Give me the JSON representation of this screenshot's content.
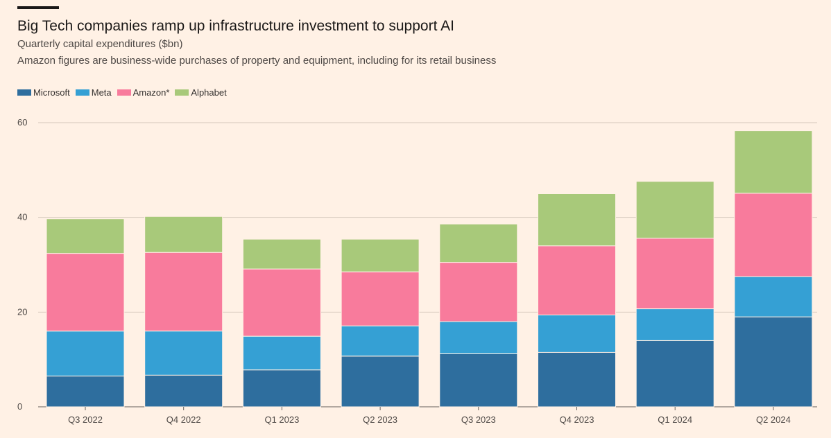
{
  "header": {
    "title": "Big Tech companies ramp up infrastructure investment to support AI",
    "subtitle": "Quarterly capital expenditures ($bn)",
    "note": "Amazon figures are business-wide purchases of property and equipment, including for its retail business"
  },
  "colors": {
    "background": "#fff1e5",
    "Microsoft": "#2e6e9e",
    "Meta": "#35a0d4",
    "Amazon*": "#f87b9c",
    "Alphabet": "#a8c97a",
    "grid": "#d6c8bc"
  },
  "chart_data": {
    "type": "bar",
    "stacked": true,
    "title": "Big Tech companies ramp up infrastructure investment to support AI",
    "subtitle": "Quarterly capital expenditures ($bn)",
    "xlabel": "",
    "ylabel": "",
    "ylim": [
      0,
      60
    ],
    "yticks": [
      0,
      20,
      40,
      60
    ],
    "grid": true,
    "legend_position": "top-left",
    "categories": [
      "Q3 2022",
      "Q4 2022",
      "Q1 2023",
      "Q2 2023",
      "Q3 2023",
      "Q4 2023",
      "Q1 2024",
      "Q2 2024"
    ],
    "series": [
      {
        "name": "Microsoft",
        "values": [
          6.5,
          6.7,
          7.8,
          10.7,
          11.2,
          11.5,
          14.0,
          19.0
        ]
      },
      {
        "name": "Meta",
        "values": [
          9.5,
          9.3,
          7.1,
          6.4,
          6.8,
          7.9,
          6.7,
          8.5
        ]
      },
      {
        "name": "Amazon*",
        "values": [
          16.4,
          16.6,
          14.2,
          11.4,
          12.5,
          14.6,
          14.9,
          17.6
        ]
      },
      {
        "name": "Alphabet",
        "values": [
          7.3,
          7.6,
          6.3,
          6.9,
          8.1,
          11.0,
          12.0,
          13.2
        ]
      }
    ]
  }
}
